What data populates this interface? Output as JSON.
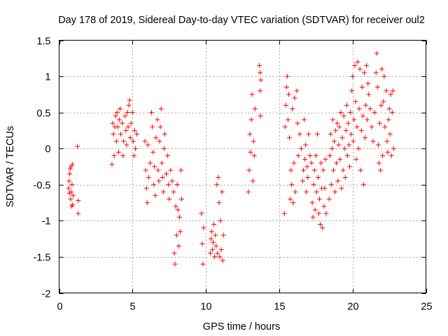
{
  "chart_data": {
    "type": "scatter",
    "title": "Day 178 of 2019, Sidereal Day-to-day VTEC variation (SDTVAR) for receiver oul2",
    "xlabel": "GPS time / hours",
    "ylabel": "SDTVAR / TECUs",
    "xlim": [
      0,
      25
    ],
    "ylim": [
      -2,
      1.5
    ],
    "x_ticks": [
      0,
      5,
      10,
      15,
      20,
      25
    ],
    "x_tick_labels": [
      "0",
      "5",
      "10",
      "15",
      "20",
      "25"
    ],
    "y_ticks": [
      -2,
      -1.5,
      -1,
      -0.5,
      0,
      0.5,
      1,
      1.5
    ],
    "y_tick_labels": [
      "-2",
      "-1.5",
      "-1",
      "-0.5",
      "0",
      "0.5",
      "1",
      "1.5"
    ],
    "grid": true,
    "marker": "plus",
    "color": "#ff0000",
    "series": [
      {
        "name": "SDTVAR",
        "points": [
          [
            0.65,
            -0.55
          ],
          [
            0.68,
            -0.45
          ],
          [
            0.7,
            -0.62
          ],
          [
            0.72,
            -0.35
          ],
          [
            0.75,
            -0.28
          ],
          [
            0.78,
            -0.7
          ],
          [
            0.8,
            -0.25
          ],
          [
            0.82,
            -0.6
          ],
          [
            0.85,
            -0.8
          ],
          [
            0.88,
            -0.5
          ],
          [
            0.9,
            -0.22
          ],
          [
            0.92,
            -0.78
          ],
          [
            0.95,
            -0.65
          ],
          [
            1.25,
            0.03
          ],
          [
            1.3,
            -0.72
          ],
          [
            1.3,
            -0.9
          ],
          [
            3.6,
            -0.22
          ],
          [
            3.65,
            0.35
          ],
          [
            3.7,
            0.2
          ],
          [
            3.75,
            -0.1
          ],
          [
            3.8,
            0.3
          ],
          [
            3.85,
            0.45
          ],
          [
            3.9,
            0.1
          ],
          [
            3.95,
            0.5
          ],
          [
            4.0,
            0.3
          ],
          [
            4.05,
            -0.05
          ],
          [
            4.1,
            0.4
          ],
          [
            4.15,
            0.55
          ],
          [
            4.2,
            0.2
          ],
          [
            4.3,
            0.35
          ],
          [
            4.35,
            -0.1
          ],
          [
            4.4,
            0.1
          ],
          [
            4.5,
            0.45
          ],
          [
            4.55,
            0.25
          ],
          [
            4.6,
            0.05
          ],
          [
            4.65,
            0.5
          ],
          [
            4.7,
            0.3
          ],
          [
            4.75,
            0.6
          ],
          [
            4.8,
            0.67
          ],
          [
            4.85,
            0.15
          ],
          [
            4.9,
            0.35
          ],
          [
            5.0,
            0.5
          ],
          [
            5.05,
            0.1
          ],
          [
            5.1,
            -0.1
          ],
          [
            5.15,
            0.25
          ],
          [
            5.2,
            0.0
          ],
          [
            5.3,
            0.2
          ],
          [
            5.85,
            0.1
          ],
          [
            5.9,
            -0.3
          ],
          [
            5.95,
            -0.55
          ],
          [
            6.0,
            -0.75
          ],
          [
            6.05,
            0.05
          ],
          [
            6.1,
            -0.4
          ],
          [
            6.2,
            -0.2
          ],
          [
            6.3,
            0.5
          ],
          [
            6.35,
            0.3
          ],
          [
            6.4,
            -0.05
          ],
          [
            6.45,
            -0.5
          ],
          [
            6.5,
            -0.25
          ],
          [
            6.55,
            -0.65
          ],
          [
            6.6,
            0.15
          ],
          [
            6.7,
            0.4
          ],
          [
            6.75,
            -0.3
          ],
          [
            6.8,
            -0.45
          ],
          [
            6.85,
            0.1
          ],
          [
            6.9,
            0.3
          ],
          [
            6.95,
            0.55
          ],
          [
            7.0,
            -0.2
          ],
          [
            7.05,
            -0.4
          ],
          [
            7.1,
            -0.6
          ],
          [
            7.15,
            0.0
          ],
          [
            7.2,
            0.2
          ],
          [
            7.3,
            -0.35
          ],
          [
            7.4,
            -0.1
          ],
          [
            7.45,
            -0.5
          ],
          [
            7.5,
            -0.7
          ],
          [
            7.6,
            -0.3
          ],
          [
            7.7,
            -0.45
          ],
          [
            7.8,
            -0.6
          ],
          [
            7.85,
            -1.45
          ],
          [
            7.9,
            -1.6
          ],
          [
            7.95,
            -0.8
          ],
          [
            8.0,
            -1.2
          ],
          [
            8.05,
            -0.5
          ],
          [
            8.1,
            -0.85
          ],
          [
            8.15,
            -1.35
          ],
          [
            8.2,
            -0.95
          ],
          [
            8.25,
            -1.15
          ],
          [
            8.3,
            -0.3
          ],
          [
            8.35,
            -0.7
          ],
          [
            9.7,
            -0.9
          ],
          [
            9.75,
            -1.32
          ],
          [
            9.8,
            -1.6
          ],
          [
            9.85,
            -1.1
          ],
          [
            10.3,
            -1.45
          ],
          [
            10.35,
            -1.25
          ],
          [
            10.4,
            -1.15
          ],
          [
            10.45,
            -1.4
          ],
          [
            10.5,
            -1.3
          ],
          [
            10.55,
            -1.05
          ],
          [
            10.6,
            -1.5
          ],
          [
            10.65,
            -1.2
          ],
          [
            10.7,
            -1.35
          ],
          [
            10.75,
            -0.5
          ],
          [
            10.8,
            -1.45
          ],
          [
            10.85,
            -0.4
          ],
          [
            10.9,
            -0.75
          ],
          [
            10.95,
            -1.5
          ],
          [
            11.0,
            -1.0
          ],
          [
            11.05,
            -1.4
          ],
          [
            11.1,
            -0.6
          ],
          [
            11.15,
            -1.55
          ],
          [
            11.2,
            -1.2
          ],
          [
            12.9,
            -0.6
          ],
          [
            12.95,
            -0.3
          ],
          [
            13.0,
            0.2
          ],
          [
            13.05,
            -0.05
          ],
          [
            13.1,
            0.4
          ],
          [
            13.15,
            0.75
          ],
          [
            13.2,
            -0.45
          ],
          [
            13.25,
            0.1
          ],
          [
            13.3,
            -0.1
          ],
          [
            13.35,
            0.55
          ],
          [
            13.65,
            1.15
          ],
          [
            13.7,
            1.05
          ],
          [
            13.7,
            0.8
          ],
          [
            13.72,
            0.45
          ],
          [
            13.75,
            0.95
          ],
          [
            15.35,
            -0.9
          ],
          [
            15.4,
            0.3
          ],
          [
            15.45,
            0.6
          ],
          [
            15.5,
            0.85
          ],
          [
            15.55,
            1.0
          ],
          [
            15.6,
            0.4
          ],
          [
            15.65,
            0.75
          ],
          [
            15.7,
            0.15
          ],
          [
            15.75,
            -0.7
          ],
          [
            15.8,
            -0.3
          ],
          [
            15.85,
            -0.5
          ],
          [
            15.9,
            0.55
          ],
          [
            15.95,
            -0.75
          ],
          [
            16.0,
            -0.2
          ],
          [
            16.05,
            0.7
          ],
          [
            16.1,
            -0.6
          ],
          [
            16.2,
            0.8
          ],
          [
            16.25,
            0.35
          ],
          [
            16.3,
            -0.1
          ],
          [
            16.4,
            0.2
          ],
          [
            16.5,
            0.0
          ],
          [
            16.6,
            -0.45
          ],
          [
            16.65,
            -0.3
          ],
          [
            16.7,
            0.4
          ],
          [
            16.75,
            -0.15
          ],
          [
            16.8,
            0.05
          ],
          [
            16.85,
            -0.6
          ],
          [
            16.9,
            -0.25
          ],
          [
            16.95,
            -0.4
          ],
          [
            17.0,
            0.2
          ],
          [
            17.1,
            -0.1
          ],
          [
            17.2,
            -0.2
          ],
          [
            17.25,
            -0.75
          ],
          [
            17.3,
            -0.95
          ],
          [
            17.35,
            -0.5
          ],
          [
            17.4,
            -0.3
          ],
          [
            17.45,
            -0.85
          ],
          [
            17.5,
            -0.1
          ],
          [
            17.55,
            -0.6
          ],
          [
            17.6,
            0.2
          ],
          [
            17.65,
            -0.4
          ],
          [
            17.7,
            -0.9
          ],
          [
            17.75,
            -0.7
          ],
          [
            17.8,
            -1.05
          ],
          [
            17.85,
            -0.2
          ],
          [
            17.9,
            -0.55
          ],
          [
            17.95,
            -1.1
          ],
          [
            18.0,
            -0.3
          ],
          [
            18.05,
            -0.8
          ],
          [
            18.1,
            -0.55
          ],
          [
            18.15,
            -0.15
          ],
          [
            18.2,
            -0.9
          ],
          [
            18.4,
            -0.7
          ],
          [
            18.45,
            -0.1
          ],
          [
            18.5,
            0.2
          ],
          [
            18.55,
            -0.5
          ],
          [
            18.6,
            0.0
          ],
          [
            18.65,
            0.4
          ],
          [
            18.7,
            -0.3
          ],
          [
            18.75,
            0.1
          ],
          [
            18.8,
            -0.6
          ],
          [
            18.85,
            0.25
          ],
          [
            18.9,
            -0.2
          ],
          [
            18.95,
            0.35
          ],
          [
            19.0,
            -0.45
          ],
          [
            19.05,
            0.05
          ],
          [
            19.1,
            0.3
          ],
          [
            19.15,
            -0.15
          ],
          [
            19.2,
            0.5
          ],
          [
            19.25,
            -0.55
          ],
          [
            19.3,
            0.15
          ],
          [
            19.35,
            -0.3
          ],
          [
            19.4,
            0.45
          ],
          [
            19.45,
            0.0
          ],
          [
            19.5,
            -0.4
          ],
          [
            19.55,
            0.25
          ],
          [
            19.6,
            0.6
          ],
          [
            19.65,
            -0.1
          ],
          [
            19.7,
            0.35
          ],
          [
            19.75,
            0.05
          ],
          [
            19.8,
            -0.25
          ],
          [
            19.85,
            0.5
          ],
          [
            19.9,
            0.2
          ],
          [
            19.95,
            0.8
          ],
          [
            20.0,
            1.0
          ],
          [
            20.05,
            0.1
          ],
          [
            20.1,
            0.4
          ],
          [
            20.15,
            1.15
          ],
          [
            20.2,
            0.65
          ],
          [
            20.25,
            -0.15
          ],
          [
            20.3,
            0.3
          ],
          [
            20.35,
            1.2
          ],
          [
            20.4,
            0.0
          ],
          [
            20.45,
            0.55
          ],
          [
            20.5,
            1.1
          ],
          [
            20.55,
            -0.3
          ],
          [
            20.6,
            0.25
          ],
          [
            20.65,
            0.85
          ],
          [
            20.7,
            0.45
          ],
          [
            20.75,
            -0.5
          ],
          [
            20.8,
            1.05
          ],
          [
            20.85,
            0.15
          ],
          [
            20.9,
            0.6
          ],
          [
            20.95,
            1.15
          ],
          [
            21.0,
            0.4
          ],
          [
            21.05,
            0.9
          ],
          [
            21.1,
            0.75
          ],
          [
            21.2,
            0.55
          ],
          [
            21.3,
            0.3
          ],
          [
            21.4,
            0.1
          ],
          [
            21.5,
            0.5
          ],
          [
            21.6,
            1.05
          ],
          [
            21.65,
            1.32
          ],
          [
            21.7,
            0.85
          ],
          [
            21.75,
            0.05
          ],
          [
            21.8,
            -0.2
          ],
          [
            21.85,
            0.35
          ],
          [
            21.9,
            -0.3
          ],
          [
            21.95,
            0.6
          ],
          [
            22.0,
            1.1
          ],
          [
            22.05,
            -0.1
          ],
          [
            22.1,
            0.65
          ],
          [
            22.15,
            1.0
          ],
          [
            22.2,
            0.3
          ],
          [
            22.3,
            0.8
          ],
          [
            22.35,
            0.1
          ],
          [
            22.4,
            -0.05
          ],
          [
            22.45,
            0.4
          ],
          [
            22.5,
            0.55
          ],
          [
            22.55,
            0.2
          ],
          [
            22.6,
            0.75
          ],
          [
            22.65,
            -0.1
          ],
          [
            22.7,
            0.5
          ],
          [
            22.75,
            0.8
          ],
          [
            22.8,
            0.0
          ]
        ]
      }
    ]
  }
}
